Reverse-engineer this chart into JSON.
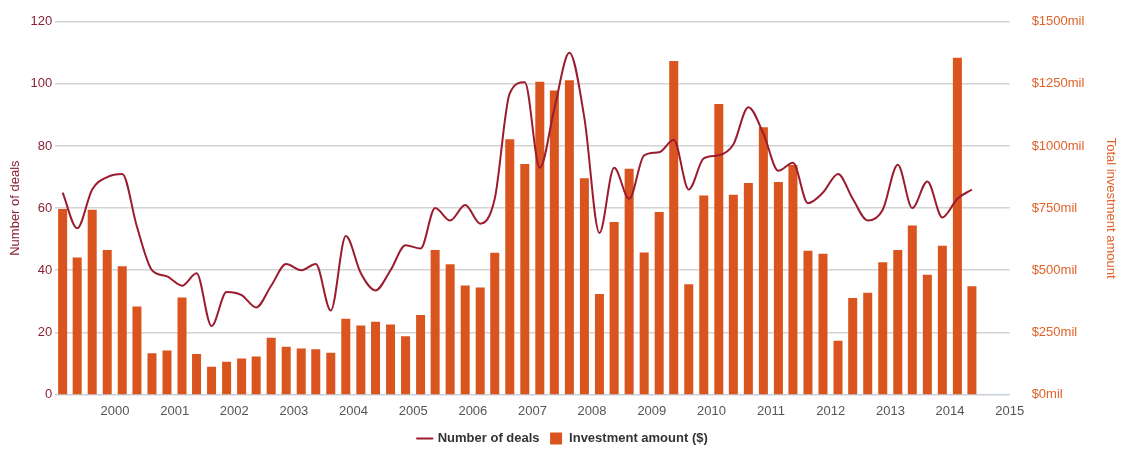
{
  "chart_data": {
    "type": "bar",
    "ylabel": "Number of deals",
    "y2label": "Total investment amount",
    "x": [
      "1999-02-15",
      "1999-05-15",
      "1999-08-15",
      "1999-11-15",
      "2000-02-15",
      "2000-05-15",
      "2000-08-15",
      "2000-11-15",
      "2001-02-15",
      "2001-05-15",
      "2001-08-15",
      "2001-11-15",
      "2002-02-15",
      "2002-05-15",
      "2002-08-15",
      "2002-11-15",
      "2003-02-15",
      "2003-05-15",
      "2003-08-15",
      "2003-11-15",
      "2004-02-15",
      "2004-05-15",
      "2004-08-15",
      "2004-11-15",
      "2005-02-15",
      "2005-05-15",
      "2005-08-15",
      "2005-11-15",
      "2006-02-15",
      "2006-05-15",
      "2006-08-15",
      "2006-11-15",
      "2007-02-15",
      "2007-05-15",
      "2007-08-15",
      "2007-11-15",
      "2008-02-15",
      "2008-05-15",
      "2008-08-15",
      "2008-11-15",
      "2009-02-15",
      "2009-05-15",
      "2009-08-15",
      "2009-11-15",
      "2010-02-15",
      "2010-05-15",
      "2010-08-15",
      "2010-11-15",
      "2011-02-15",
      "2011-05-15",
      "2011-08-15",
      "2011-11-15",
      "2012-02-15",
      "2012-05-15",
      "2012-08-15",
      "2012-11-15",
      "2013-02-15",
      "2013-05-15",
      "2013-08-15",
      "2013-11-15",
      "2014-02-15",
      "2014-05-15"
    ],
    "series": [
      {
        "name": "Number of deals",
        "type": "line",
        "color": "#9b1c2e",
        "values": [
          65,
          53.5,
          66,
          70,
          71,
          54,
          40,
          38,
          35,
          39,
          22,
          33,
          32,
          28,
          35,
          42,
          40,
          42,
          27,
          51,
          39,
          33.5,
          40,
          48,
          47,
          60,
          56,
          61,
          55,
          63,
          97,
          100.5,
          73,
          92,
          110,
          89,
          52,
          73,
          63,
          77,
          78,
          82,
          66,
          76,
          77,
          80.5,
          92.5,
          84,
          72,
          74.6,
          61.6,
          65,
          71,
          63,
          56,
          59.5,
          74,
          60,
          68.6,
          57,
          63,
          66
        ]
      },
      {
        "name": "Investment amount ($)",
        "axis": "y2",
        "color": "#d9541e",
        "values": [
          746,
          551,
          743,
          581,
          516,
          354,
          166,
          177,
          390,
          163,
          111,
          131,
          145,
          153,
          228,
          192,
          185,
          182,
          168,
          305,
          277,
          292,
          281,
          234,
          320,
          581,
          524,
          438,
          430,
          570,
          1027,
          928,
          1259,
          1223,
          1265,
          870,
          404,
          694,
          908,
          571,
          734,
          1342,
          443,
          801,
          1169,
          804,
          851,
          1075,
          855,
          924,
          578,
          566,
          216,
          388,
          409,
          532,
          581,
          680,
          482,
          598,
          1355,
          435
        ]
      }
    ],
    "xlim": [
      "1999-01-01",
      "2015"
    ],
    "xticks": [
      {
        "value": "2000",
        "label": "2000"
      },
      {
        "value": "2001",
        "label": "2001"
      },
      {
        "value": "2002",
        "label": "2002"
      },
      {
        "value": "2003",
        "label": "2003"
      },
      {
        "value": "2004",
        "label": "2004"
      },
      {
        "value": "2005",
        "label": "2005"
      },
      {
        "value": "2006",
        "label": "2006"
      },
      {
        "value": "2007",
        "label": "2007"
      },
      {
        "value": "2008",
        "label": "2008"
      },
      {
        "value": "2009",
        "label": "2009"
      },
      {
        "value": "2010",
        "label": "2010"
      },
      {
        "value": "2011",
        "label": "2011"
      },
      {
        "value": "2012",
        "label": "2012"
      },
      {
        "value": "2013",
        "label": "2013"
      },
      {
        "value": "2014",
        "label": "2014"
      },
      {
        "value": "2015",
        "label": "2015"
      }
    ],
    "ylim": [
      0,
      120
    ],
    "yticks": [
      0,
      20,
      40,
      60,
      80,
      100,
      120
    ],
    "y2lim": [
      0,
      1500
    ],
    "y2ticks": [
      {
        "value": 0,
        "label": "$0mil"
      },
      {
        "value": 250,
        "label": "$250mil"
      },
      {
        "value": 500,
        "label": "$500mil"
      },
      {
        "value": 750,
        "label": "$750mil"
      },
      {
        "value": 1000,
        "label": "$1000mil"
      },
      {
        "value": 1250,
        "label": "$1250mil"
      },
      {
        "value": 1500,
        "label": "$1500mil"
      }
    ],
    "grid": "y",
    "legend": "bottom",
    "marker": "none"
  }
}
